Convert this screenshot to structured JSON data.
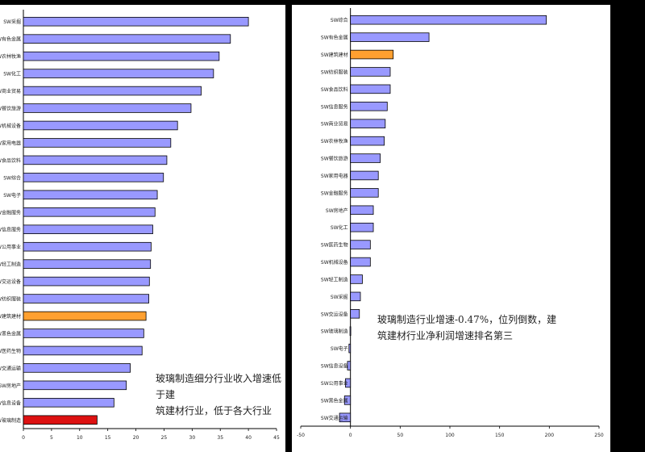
{
  "left_note": "玻璃制造细分行业收入增速低于建\n筑建材行业，低于各大行业",
  "right_note": "玻璃制造行业增速-0.47%，位列倒数，建\n筑建材行业净利润增速排名第三",
  "colors": {
    "default": "#9999ff",
    "highlight": "#ffa030",
    "red": "#dd1111",
    "stroke": "#000000"
  },
  "chart_data": [
    {
      "type": "bar",
      "orientation": "horizontal",
      "categories": [
        "SW采掘",
        "SW有色金属",
        "SW农林牧渔",
        "SW化工",
        "SW商业贸易",
        "SW餐饮旅游",
        "SW机械设备",
        "SW家用电器",
        "SW食品饮料",
        "SW综合",
        "SW电子",
        "SW金融服务",
        "SW信息服务",
        "SW公用事业",
        "SW轻工制造",
        "SW交运设备",
        "SW纺织服装",
        "SW建筑建材",
        "SW黑色金属",
        "SW医药生物",
        "SW交通运输",
        "SW房地产",
        "SW信息设备",
        "SW玻璃制造"
      ],
      "values": [
        40.0,
        36.8,
        34.8,
        33.8,
        31.6,
        29.8,
        27.4,
        26.2,
        25.5,
        24.9,
        23.8,
        23.4,
        23.0,
        22.7,
        22.6,
        22.4,
        22.3,
        21.8,
        21.4,
        21.1,
        19.0,
        18.3,
        16.1,
        13.1
      ],
      "highlight": {
        "SW建筑建材": "highlight",
        "SW玻璃制造": "red"
      },
      "xlim": [
        0,
        45
      ],
      "xticks": [
        0,
        5,
        10,
        15,
        20,
        25,
        30,
        35,
        40,
        45
      ]
    },
    {
      "type": "bar",
      "orientation": "horizontal",
      "categories": [
        "SW综合",
        "SW有色金属",
        "SW建筑建材",
        "SW纺织服装",
        "SW食品饮料",
        "SW信息服务",
        "SW商业贸易",
        "SW农林牧渔",
        "SW餐饮旅游",
        "SW家用电器",
        "SW金融服务",
        "SW房地产",
        "SW化工",
        "SW医药生物",
        "SW机械设备",
        "SW轻工制造",
        "SW采掘",
        "SW交运设备",
        "SW玻璃制造",
        "SW电子",
        "SW信息设备",
        "SW公用事业",
        "SW黑色金属",
        "SW交通运输"
      ],
      "values": [
        197,
        79,
        43,
        40,
        40,
        37,
        35,
        34,
        30,
        28,
        28,
        23,
        23,
        20,
        20,
        12,
        10,
        9,
        -0.47,
        -1.5,
        -3,
        -5,
        -6,
        -11
      ],
      "highlight": {
        "SW建筑建材": "highlight"
      },
      "xlim": [
        -50,
        250
      ],
      "xticks": [
        -50,
        0,
        50,
        100,
        150,
        200,
        250
      ]
    }
  ]
}
